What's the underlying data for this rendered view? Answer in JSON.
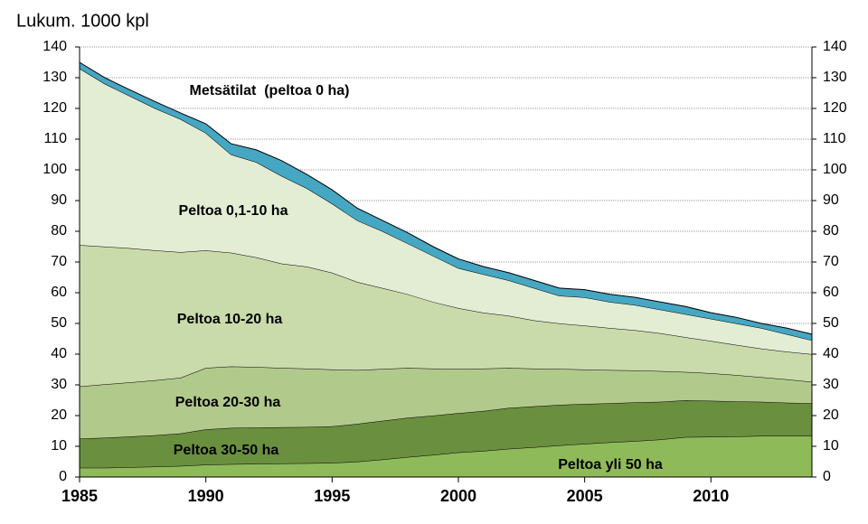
{
  "chart_data": {
    "type": "stacked_area",
    "y_label": "Lukum. 1000 kpl",
    "x": [
      1985,
      1986,
      1987,
      1988,
      1989,
      1990,
      1991,
      1992,
      1993,
      1994,
      1995,
      1996,
      1997,
      1998,
      1999,
      2000,
      2001,
      2002,
      2003,
      2004,
      2005,
      2006,
      2007,
      2008,
      2009,
      2010,
      2011,
      2012,
      2013,
      2014
    ],
    "xlim": [
      1985,
      2014
    ],
    "xticks": [
      1985,
      1990,
      1995,
      2000,
      2005,
      2010
    ],
    "ylim": [
      0,
      140
    ],
    "yticks": [
      0,
      10,
      20,
      30,
      40,
      50,
      60,
      70,
      80,
      90,
      100,
      110,
      120,
      130,
      140
    ],
    "y2lim": [
      0,
      140
    ],
    "y2ticks": [
      0,
      10,
      20,
      30,
      40,
      50,
      60,
      70,
      80,
      90,
      100,
      110,
      120,
      130,
      140
    ],
    "grid": true,
    "series": [
      {
        "name": "Peltoa yli 50 ha",
        "color": "#8fba5a",
        "values": [
          3,
          3,
          3.2,
          3.4,
          3.6,
          4,
          4.2,
          4.3,
          4.4,
          4.5,
          4.6,
          5,
          5.7,
          6.5,
          7.2,
          8,
          8.5,
          9.2,
          9.7,
          10.3,
          10.8,
          11.3,
          11.7,
          12.2,
          13,
          13.1,
          13.2,
          13.4,
          13.4,
          13.4
        ]
      },
      {
        "name": "Peltoa 30-50 ha",
        "color": "#6a8f3f",
        "values": [
          9.5,
          9.8,
          10,
          10.2,
          10.6,
          11.5,
          11.8,
          11.8,
          11.8,
          11.8,
          11.9,
          12.3,
          12.6,
          12.8,
          12.8,
          12.8,
          13,
          13.3,
          13.3,
          13.2,
          13,
          12.7,
          12.6,
          12.3,
          12,
          11.7,
          11.4,
          11.1,
          10.8,
          10.6
        ]
      },
      {
        "name": "Peltoa 20-30 ha",
        "color": "#b2c98c",
        "values": [
          17,
          17.4,
          17.6,
          17.9,
          18.1,
          20,
          20,
          19.7,
          19.3,
          19,
          18.5,
          17.5,
          16.9,
          16.2,
          15.3,
          14.4,
          13.8,
          13,
          12.3,
          11.7,
          11.2,
          10.8,
          10.4,
          10,
          9.2,
          9,
          8.6,
          8,
          7.6,
          7
        ]
      },
      {
        "name": "Peltoa 10-20 ha",
        "color": "#c9dbaa",
        "values": [
          46,
          44.8,
          43.7,
          42.3,
          40.9,
          38.3,
          37,
          35.7,
          34,
          33.2,
          31.5,
          28.7,
          26.3,
          24,
          21.7,
          19.8,
          18.2,
          17,
          15.7,
          14.8,
          14.3,
          13.7,
          13.1,
          12.3,
          11.3,
          10.5,
          9.8,
          9.3,
          9,
          9
        ]
      },
      {
        "name": "Peltoa 0,1-10 ha",
        "color": "#e3edd4",
        "values": [
          57.5,
          53,
          49.5,
          46.2,
          43.3,
          38.2,
          32,
          31,
          28.5,
          25.5,
          22.5,
          20,
          18.5,
          16.5,
          15,
          13,
          12.5,
          11.5,
          10.5,
          9,
          9.2,
          8.5,
          8.2,
          7.7,
          7.5,
          7.2,
          7,
          6.7,
          5.7,
          4.5
        ]
      },
      {
        "name": "Metsätilat  (peltoa 0 ha)",
        "color": "#46a7c3",
        "values": [
          2,
          2,
          2,
          2.2,
          2,
          3,
          3.5,
          4,
          5,
          4.5,
          4.5,
          4,
          3.5,
          3.5,
          3,
          3,
          2.5,
          2.5,
          2.5,
          2.5,
          2.5,
          2.5,
          2.5,
          2.5,
          2.5,
          2,
          2,
          1.5,
          2,
          2
        ]
      }
    ]
  }
}
